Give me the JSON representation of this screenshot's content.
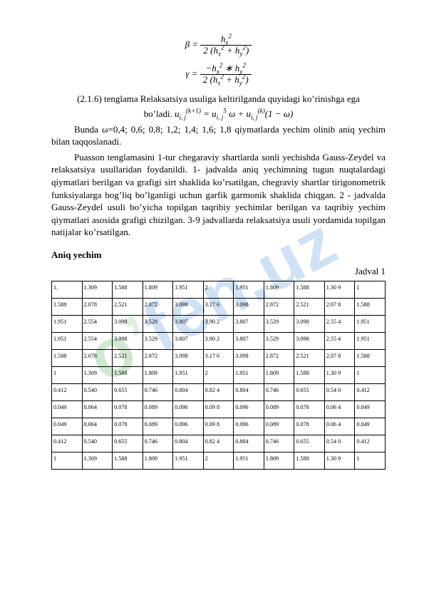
{
  "watermark": {
    "p1": "o",
    "p2": "’",
    "p3": "fen.uz"
  },
  "formulas": {
    "beta_lhs": "β =",
    "beta_num": "h²_x",
    "beta_den": "2 (h²_x + h²_y)",
    "gamma_lhs": "γ =",
    "gamma_num": "− h²_x ∗ h²_y",
    "gamma_den": "2 (h²_x + h²_y)",
    "inline_label": "bo’ladi.",
    "inline_eq": "u_{i,j}^{(k+1)} = u_{i,j}^{5} ω + u_{i,j}^{(k)} (1 − ω)"
  },
  "body": {
    "p1": "(2.1.6) tenglama Relaksatsiya usuliga keltirilganda quyidagi ko’rinishga ega",
    "p2_pre": "Bunda ",
    "p2_vals": "ω=0,4; 0,6; 0,8; 1,2; 1,4; 1,6; 1,8",
    "p2_post": " qiymatlarda yechim olinib aniq yechim bilan taqqoslanadi.",
    "p3": "Puasson tenglamasini 1-tur chegaraviy shartlarda sonli yechishda Gauss-Zeydel va relaksatsiya usullaridan foydanildi. 1- jadvalda aniq yechimning tugun nuqtalardagi qiymatlari berilgan va grafigi sirt shaklida ko’rsatilgan, chegraviy shartlar tirigonometrik funksiyalarga bog’liq bo’lganligi uchun garfik garmonik shaklida chiqgan. 2 -  jadvalda Gauss-Zeydel usuli bo’yicha topilgan taqribiy yechimlar berilgan va taqribiy yechim qiymatlari asosida grafigi chizilgan. 3-9 jadvallarda relaksatsiya usuli yordamida topilgan natijalar ko’rsatilgan."
  },
  "section": {
    "title": "Aniq yechim",
    "table_label": "Jadval 1"
  },
  "table": {
    "rows": [
      [
        "1.",
        "1.309",
        "1.588",
        "1.809",
        "1.951",
        "2",
        "1.951",
        "1.809",
        "1.588",
        "1.30 9",
        "1"
      ],
      [
        "1.588",
        "2.078",
        "2.521",
        "2.872",
        "3.098",
        "3.17 6",
        "3.098",
        "2.872",
        "2.521",
        "2.07 8",
        "1.588"
      ],
      [
        "1.951",
        "2.554",
        "3.098",
        "3.529",
        "3.807",
        "3.90 2",
        "3.807",
        "3.529",
        "3.098",
        "2.55 4",
        "1.951"
      ],
      [
        "1.951",
        "2.554",
        "3.098",
        "3.529",
        "3.807",
        "3.90 2",
        "3.807",
        "3.529",
        "3.098",
        "2.55 4",
        "1.951"
      ],
      [
        "1.588",
        "2.078",
        "2.521",
        "2.872",
        "3.098",
        "3.17 6",
        "3.098",
        "2.872",
        "2.521",
        "2.07 8",
        "1.588"
      ],
      [
        "1",
        "1.309",
        "1.588",
        "1.809",
        "1.951",
        "2",
        "1.951",
        "1.809",
        "1.588",
        "1.30 9",
        "1"
      ],
      [
        "0.412",
        "0.540",
        "0.655",
        "0.746",
        "0.804",
        "0.82 4",
        "0.804",
        "0.746",
        "0.655",
        "0.54 0",
        "0.412"
      ],
      [
        "0.049",
        "0.064",
        "0.078",
        "0.089",
        "0.096",
        "0.09 8",
        "0.096",
        "0.089",
        "0.078",
        "0.06 4",
        "0.049"
      ],
      [
        "0.049",
        "0.064",
        "0.078",
        "0.089",
        "0.096",
        "0.09 8",
        "0.096",
        "0.089",
        "0.078",
        "0.06 4",
        "0.049"
      ],
      [
        "0.412",
        "0.540",
        "0.655",
        "0.746",
        "0.804",
        "0.82 4",
        "0.804",
        "0.746",
        "0.655",
        "0.54 0",
        "0.412"
      ],
      [
        "1",
        "1.309",
        "1.588",
        "1.809",
        "1.951",
        "2",
        "1.951",
        "1.809",
        "1.588",
        "1.30 9",
        "1"
      ]
    ]
  }
}
